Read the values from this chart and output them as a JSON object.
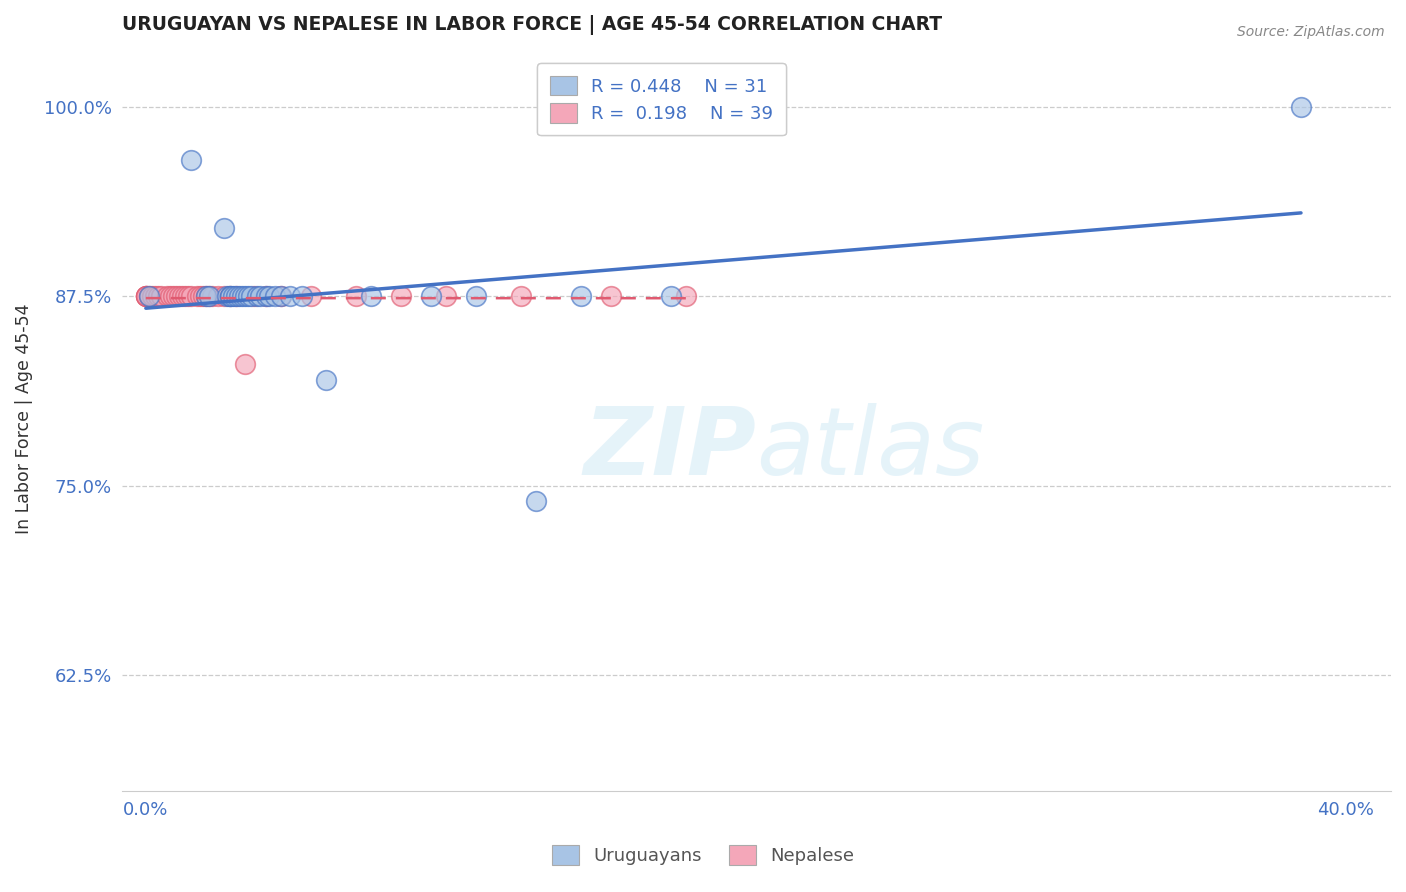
{
  "title": "URUGUAYAN VS NEPALESE IN LABOR FORCE | AGE 45-54 CORRELATION CHART",
  "source": "Source: ZipAtlas.com",
  "ylabel": "In Labor Force | Age 45-54",
  "uruguayan_color": "#a8c4e5",
  "nepalese_color": "#f4a7b9",
  "uruguayan_line_color": "#4472c4",
  "nepalese_line_color": "#e05a70",
  "uruguayan_x": [
    0.001,
    0.015,
    0.02,
    0.021,
    0.026,
    0.027,
    0.028,
    0.028,
    0.029,
    0.03,
    0.031,
    0.032,
    0.033,
    0.034,
    0.035,
    0.037,
    0.038,
    0.04,
    0.041,
    0.043,
    0.045,
    0.048,
    0.052,
    0.06,
    0.075,
    0.095,
    0.11,
    0.13,
    0.145,
    0.175,
    0.385
  ],
  "uruguayan_y": [
    0.875,
    0.965,
    0.875,
    0.875,
    0.92,
    0.875,
    0.875,
    0.875,
    0.875,
    0.875,
    0.875,
    0.875,
    0.875,
    0.875,
    0.875,
    0.875,
    0.875,
    0.875,
    0.875,
    0.875,
    0.875,
    0.875,
    0.875,
    0.82,
    0.875,
    0.875,
    0.875,
    0.74,
    0.875,
    0.875,
    1.0
  ],
  "nepalese_x": [
    0.0,
    0.0,
    0.0,
    0.0,
    0.001,
    0.002,
    0.003,
    0.004,
    0.005,
    0.007,
    0.008,
    0.009,
    0.01,
    0.011,
    0.012,
    0.013,
    0.014,
    0.015,
    0.017,
    0.018,
    0.019,
    0.02,
    0.021,
    0.022,
    0.024,
    0.026,
    0.028,
    0.03,
    0.033,
    0.036,
    0.04,
    0.045,
    0.055,
    0.07,
    0.085,
    0.1,
    0.125,
    0.155,
    0.18
  ],
  "nepalese_y": [
    0.875,
    0.875,
    0.875,
    0.875,
    0.875,
    0.875,
    0.875,
    0.875,
    0.875,
    0.875,
    0.875,
    0.875,
    0.875,
    0.875,
    0.875,
    0.875,
    0.875,
    0.875,
    0.875,
    0.875,
    0.875,
    0.875,
    0.875,
    0.875,
    0.875,
    0.875,
    0.875,
    0.875,
    0.83,
    0.875,
    0.875,
    0.875,
    0.875,
    0.875,
    0.875,
    0.875,
    0.875,
    0.875,
    0.875
  ],
  "xlim_min": -0.008,
  "xlim_max": 0.415,
  "ylim_min": 0.548,
  "ylim_max": 1.04,
  "yticks": [
    0.625,
    0.75,
    0.875,
    1.0
  ],
  "ytick_labels": [
    "62.5%",
    "75.0%",
    "87.5%",
    "100.0%"
  ],
  "xticks": [
    0.0,
    0.1,
    0.2,
    0.3,
    0.4
  ],
  "xtick_labels": [
    "0.0%",
    "",
    "",
    "",
    "40.0%"
  ]
}
